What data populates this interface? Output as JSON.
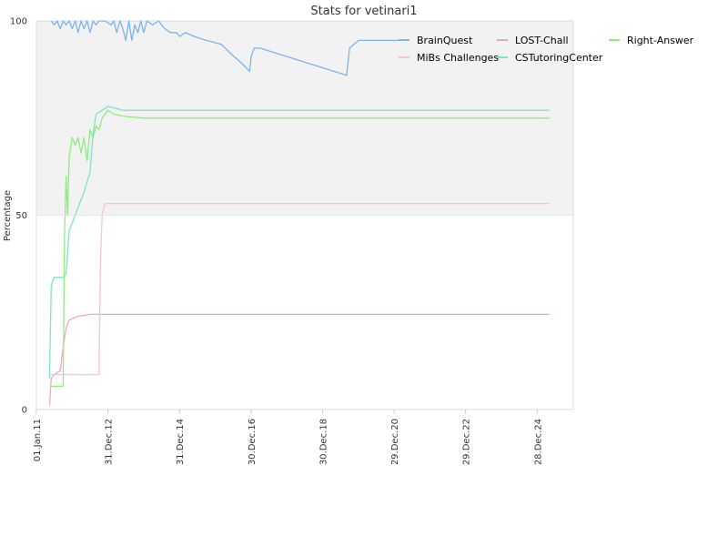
{
  "chart_data": {
    "type": "line",
    "title": "Stats for vetinari1",
    "xlabel": "",
    "ylabel": "Percentage",
    "x_is_date": true,
    "xlim": [
      "2011-01-01",
      "2025-12-31"
    ],
    "ylim": [
      0,
      100
    ],
    "x_ticks": [
      "01.Jan.11",
      "31.Dec.12",
      "31.Dec.14",
      "30.Dec.16",
      "30.Dec.18",
      "29.Dec.20",
      "29.Dec.22",
      "28.Dec.24"
    ],
    "y_ticks": [
      "0",
      "50",
      "100"
    ],
    "bands": [
      {
        "from": 50,
        "to": 100,
        "color": "#f2f2f2"
      }
    ],
    "legend_position": "top-right",
    "series": [
      {
        "name": "BrainQuest",
        "color": "#7cb5ec",
        "points": [
          [
            "2011-06-01",
            100
          ],
          [
            "2011-07-01",
            99
          ],
          [
            "2011-08-01",
            100
          ],
          [
            "2011-09-01",
            98
          ],
          [
            "2011-10-01",
            100
          ],
          [
            "2011-11-01",
            99
          ],
          [
            "2011-12-01",
            100
          ],
          [
            "2012-01-01",
            98
          ],
          [
            "2012-02-01",
            100
          ],
          [
            "2012-03-01",
            97
          ],
          [
            "2012-04-01",
            100
          ],
          [
            "2012-05-01",
            98
          ],
          [
            "2012-06-01",
            100
          ],
          [
            "2012-07-01",
            97
          ],
          [
            "2012-08-01",
            100
          ],
          [
            "2012-09-01",
            99
          ],
          [
            "2012-10-01",
            100
          ],
          [
            "2012-12-01",
            100
          ],
          [
            "2013-02-01",
            99
          ],
          [
            "2013-03-01",
            100
          ],
          [
            "2013-04-01",
            97
          ],
          [
            "2013-05-01",
            100
          ],
          [
            "2013-06-01",
            98
          ],
          [
            "2013-07-01",
            95
          ],
          [
            "2013-08-01",
            100
          ],
          [
            "2013-09-01",
            95
          ],
          [
            "2013-10-01",
            99
          ],
          [
            "2013-11-01",
            97
          ],
          [
            "2013-12-01",
            100
          ],
          [
            "2014-01-01",
            97
          ],
          [
            "2014-02-01",
            100
          ],
          [
            "2014-04-01",
            99
          ],
          [
            "2014-06-01",
            100
          ],
          [
            "2014-08-01",
            98
          ],
          [
            "2014-10-01",
            97
          ],
          [
            "2014-12-01",
            97
          ],
          [
            "2015-01-01",
            96
          ],
          [
            "2015-03-01",
            97
          ],
          [
            "2015-06-01",
            96
          ],
          [
            "2015-10-01",
            95
          ],
          [
            "2016-03-01",
            94
          ],
          [
            "2016-07-01",
            91
          ],
          [
            "2016-10-01",
            89
          ],
          [
            "2016-12-15",
            87
          ],
          [
            "2017-01-01",
            91
          ],
          [
            "2017-02-01",
            93
          ],
          [
            "2017-04-01",
            93
          ],
          [
            "2019-09-01",
            86
          ],
          [
            "2019-10-01",
            93
          ],
          [
            "2020-01-01",
            95
          ],
          [
            "2021-06-01",
            95
          ]
        ]
      },
      {
        "name": "LOST-Chall",
        "color": "#f7a1c4",
        "points": [
          [
            "2011-05-15",
            1
          ],
          [
            "2011-06-01",
            8
          ],
          [
            "2011-07-01",
            9
          ],
          [
            "2011-09-01",
            10
          ],
          [
            "2011-10-01",
            16
          ],
          [
            "2011-11-01",
            21
          ],
          [
            "2011-12-01",
            23
          ],
          [
            "2012-03-01",
            24
          ],
          [
            "2012-07-01",
            24.5
          ],
          [
            "2025-04-30",
            24.5
          ]
        ]
      },
      {
        "name": "Right-Answer",
        "color": "#90ed7d",
        "points": [
          [
            "2011-06-01",
            6
          ],
          [
            "2011-10-01",
            6
          ],
          [
            "2011-10-15",
            45
          ],
          [
            "2011-11-01",
            60
          ],
          [
            "2011-11-15",
            50
          ],
          [
            "2011-12-01",
            65
          ],
          [
            "2012-01-01",
            70
          ],
          [
            "2012-02-01",
            68
          ],
          [
            "2012-03-01",
            70
          ],
          [
            "2012-04-01",
            66
          ],
          [
            "2012-05-01",
            70
          ],
          [
            "2012-06-01",
            64
          ],
          [
            "2012-07-01",
            72
          ],
          [
            "2012-08-01",
            70
          ],
          [
            "2012-09-01",
            73
          ],
          [
            "2012-10-01",
            72
          ],
          [
            "2012-11-01",
            75
          ],
          [
            "2013-01-01",
            77
          ],
          [
            "2013-03-01",
            76
          ],
          [
            "2013-06-01",
            75.5
          ],
          [
            "2014-01-01",
            75
          ],
          [
            "2025-04-30",
            75
          ]
        ]
      },
      {
        "name": "MiBs Challenges",
        "color": "#f7c6c6",
        "points": [
          [
            "2011-05-15",
            9
          ],
          [
            "2012-10-01",
            9
          ],
          [
            "2012-10-15",
            37
          ],
          [
            "2012-11-01",
            50
          ],
          [
            "2012-12-01",
            53
          ],
          [
            "2025-04-30",
            53
          ]
        ]
      },
      {
        "name": "CSTutoringCenter",
        "color": "#7de3c8",
        "points": [
          [
            "2011-05-15",
            8
          ],
          [
            "2011-06-01",
            32
          ],
          [
            "2011-07-01",
            34
          ],
          [
            "2011-10-01",
            34
          ],
          [
            "2011-11-01",
            35
          ],
          [
            "2011-12-01",
            46
          ],
          [
            "2012-01-01",
            48
          ],
          [
            "2012-03-01",
            52
          ],
          [
            "2012-05-01",
            56
          ],
          [
            "2012-07-01",
            61
          ],
          [
            "2012-08-01",
            71
          ],
          [
            "2012-09-01",
            76
          ],
          [
            "2012-11-01",
            77
          ],
          [
            "2013-01-01",
            78
          ],
          [
            "2013-06-01",
            77
          ],
          [
            "2025-04-30",
            77
          ]
        ]
      }
    ]
  }
}
